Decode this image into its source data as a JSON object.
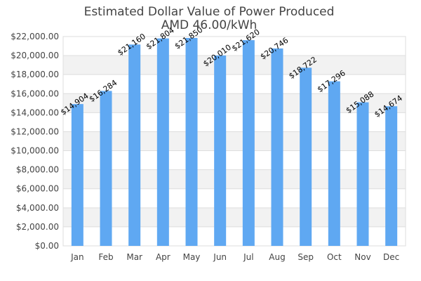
{
  "chart_data": {
    "type": "bar",
    "title": "Estimated Dollar Value of Power Produced",
    "subtitle": "AMD 46.00/kWh",
    "xlabel": "",
    "ylabel": "",
    "categories": [
      "Jan",
      "Feb",
      "Mar",
      "Apr",
      "May",
      "Jun",
      "Jul",
      "Aug",
      "Sep",
      "Oct",
      "Nov",
      "Dec"
    ],
    "series": [
      {
        "values": [
          14904,
          16284,
          21160,
          21804,
          21850,
          20010,
          21620,
          20746,
          18722,
          17296,
          15088,
          14674
        ],
        "labels": [
          "$14,904",
          "$16,284",
          "$21,160",
          "$21,804",
          "$21,850",
          "$20,010",
          "$21,620",
          "$20,746",
          "$18,722",
          "$17,296",
          "$15,088",
          "$14,674"
        ],
        "color": "#5fa8f2"
      }
    ],
    "ylim": [
      0,
      22000
    ],
    "yticks": [
      0,
      2000,
      4000,
      6000,
      8000,
      10000,
      12000,
      14000,
      16000,
      18000,
      20000,
      22000
    ],
    "ytick_labels": [
      "$0.00",
      "$2,000.00",
      "$4,000.00",
      "$6,000.00",
      "$8,000.00",
      "$10,000.00",
      "$12,000.00",
      "$14,000.00",
      "$16,000.00",
      "$18,000.00",
      "$20,000.00",
      "$22,000.00"
    ],
    "grid": true,
    "band_color": "#f2f2f2",
    "grid_color": "#dddddd",
    "legend": "none"
  }
}
